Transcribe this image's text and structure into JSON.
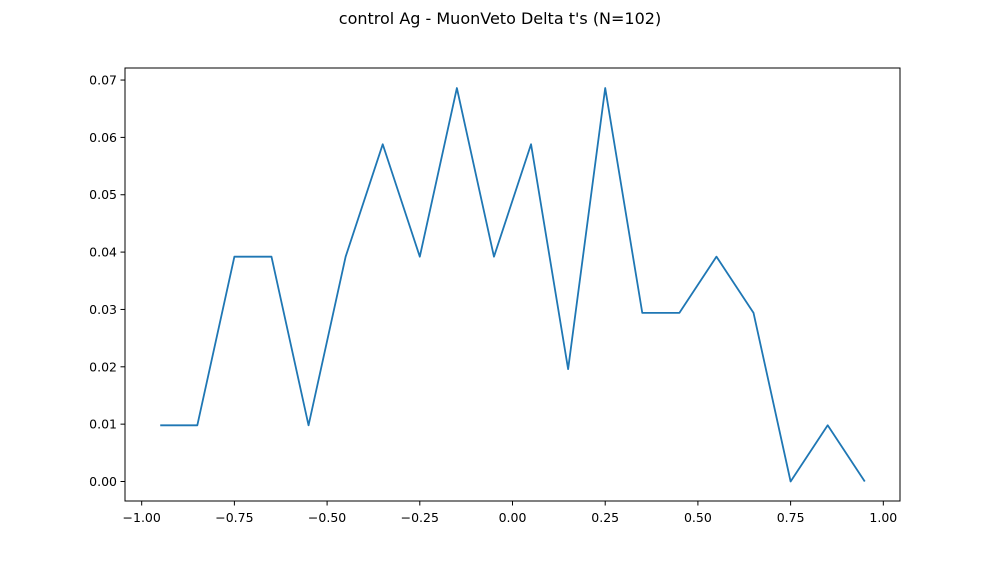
{
  "chart_data": {
    "type": "line",
    "title": "control Ag - MuonVeto Delta t's (N=102)",
    "xlabel": "",
    "ylabel": "",
    "xlim": [
      -1.045,
      1.045
    ],
    "ylim": [
      -0.0034,
      0.0721
    ],
    "grid": false,
    "x_ticks": [
      -1.0,
      -0.75,
      -0.5,
      -0.25,
      0.0,
      0.25,
      0.5,
      0.75,
      1.0
    ],
    "x_tick_labels": [
      "−1.00",
      "−0.75",
      "−0.50",
      "−0.25",
      "0.00",
      "0.25",
      "0.50",
      "0.75",
      "1.00"
    ],
    "y_ticks": [
      0.0,
      0.01,
      0.02,
      0.03,
      0.04,
      0.05,
      0.06,
      0.07
    ],
    "y_tick_labels": [
      "0.00",
      "0.01",
      "0.02",
      "0.03",
      "0.04",
      "0.05",
      "0.06",
      "0.07"
    ],
    "series": [
      {
        "color": "#1f77b4",
        "x": [
          -0.95,
          -0.85,
          -0.75,
          -0.65,
          -0.55,
          -0.45,
          -0.35,
          -0.25,
          -0.15,
          -0.05,
          0.05,
          0.15,
          0.25,
          0.35,
          0.45,
          0.55,
          0.65,
          0.75,
          0.85,
          0.95
        ],
        "y": [
          0.0098,
          0.0098,
          0.0392,
          0.0392,
          0.0098,
          0.0392,
          0.0588,
          0.0392,
          0.0686,
          0.0392,
          0.0588,
          0.0196,
          0.0686,
          0.0294,
          0.0294,
          0.0392,
          0.0294,
          0.0,
          0.0098,
          0.0
        ]
      }
    ]
  }
}
